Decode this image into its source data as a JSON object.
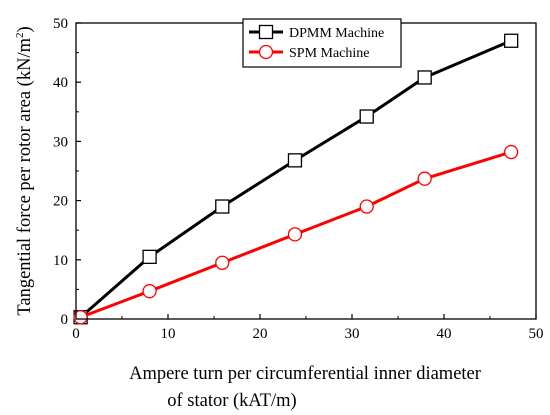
{
  "chart_data": {
    "type": "line",
    "x": [
      0.5,
      8,
      15.9,
      23.8,
      31.6,
      37.9,
      47.3
    ],
    "series": [
      {
        "name": "DPMM Machine",
        "values": [
          0.3,
          10.5,
          19.0,
          26.8,
          34.2,
          40.8,
          47.0
        ],
        "color": "#000000",
        "marker": "square"
      },
      {
        "name": "SPM Machine",
        "values": [
          0.3,
          4.7,
          9.5,
          14.3,
          19.0,
          23.7,
          28.2
        ],
        "color": "#ff0000",
        "marker": "circle"
      }
    ],
    "xlim": [
      0,
      50
    ],
    "ylim": [
      0,
      50
    ],
    "xticks": [
      0,
      10,
      20,
      30,
      40,
      50
    ],
    "yticks": [
      0,
      10,
      20,
      30,
      40,
      50
    ],
    "xlabel_line1": "Ampere turn per circumferential inner diameter",
    "xlabel_line2": "of stator (kAT/m)",
    "ylabel_main": "Tangential force per rotor area (kN/m",
    "ylabel_sup": "2",
    "ylabel_end": ")",
    "legend_position": "top-center",
    "grid": false
  }
}
